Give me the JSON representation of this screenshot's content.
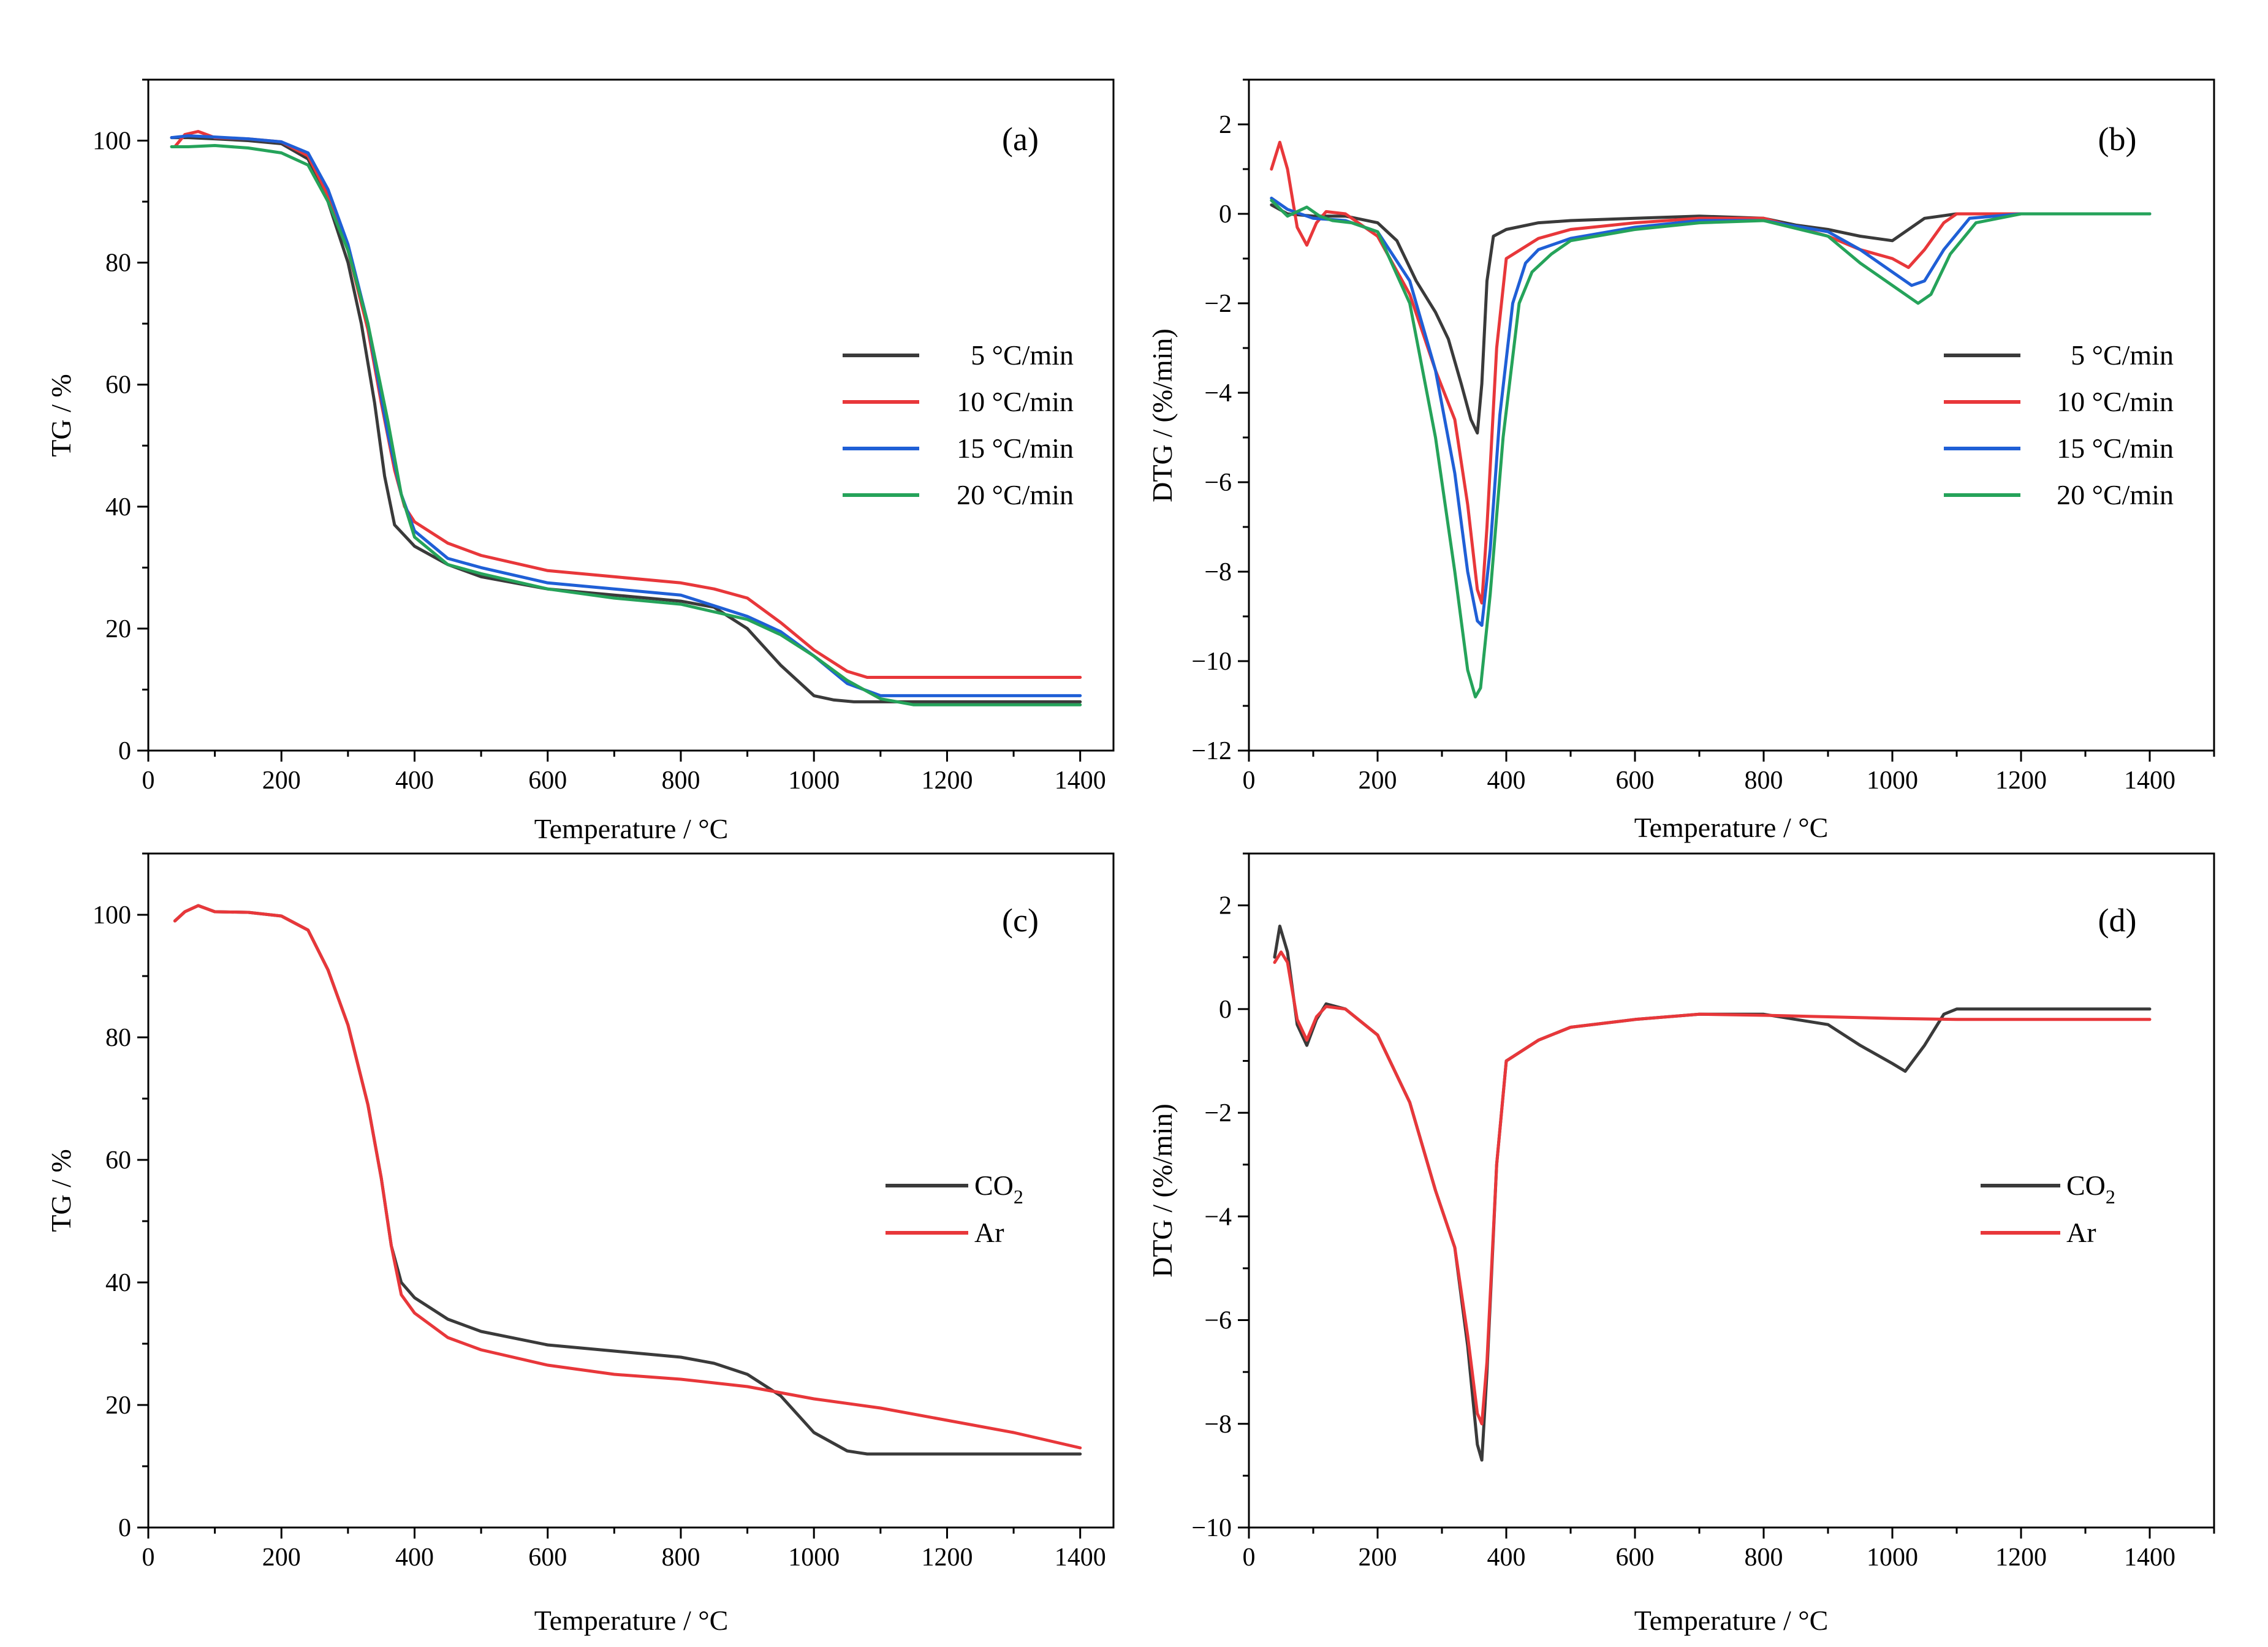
{
  "colors": {
    "rate_5": "#3a3a3a",
    "rate_10": "#e8373a",
    "rate_15": "#1f5fd6",
    "rate_20": "#25a35a",
    "co2": "#3a3a3a",
    "ar": "#e8373a"
  },
  "chart_data": [
    {
      "type": "line",
      "panel": "(a)",
      "xlabel": "Temperature / °C",
      "ylabel": "TG / %",
      "xlim": [
        0,
        1450
      ],
      "ylim": [
        0,
        110
      ],
      "xticks": [
        0,
        200,
        400,
        600,
        800,
        1000,
        1200,
        1400
      ],
      "yticks": [
        0,
        20,
        40,
        60,
        80,
        100
      ],
      "legend": "center-right",
      "series": [
        {
          "name": "5 °C/min",
          "color_key": "rate_5",
          "x": [
            35,
            60,
            100,
            150,
            200,
            240,
            270,
            300,
            320,
            340,
            355,
            370,
            400,
            450,
            500,
            600,
            700,
            800,
            850,
            900,
            950,
            1000,
            1030,
            1060,
            1100,
            1200,
            1400
          ],
          "y": [
            100.5,
            100.5,
            100.3,
            100,
            99.5,
            97,
            90,
            80,
            70,
            57,
            45,
            37,
            33.5,
            30.5,
            28.5,
            26.5,
            25.5,
            24.5,
            23.5,
            20,
            14,
            9,
            8.3,
            8,
            8,
            8,
            8
          ]
        },
        {
          "name": "10 °C/min",
          "color_key": "rate_10",
          "x": [
            40,
            55,
            75,
            100,
            150,
            200,
            240,
            270,
            300,
            330,
            350,
            370,
            385,
            400,
            450,
            500,
            600,
            700,
            800,
            850,
            900,
            950,
            1000,
            1050,
            1080,
            1100,
            1200,
            1400
          ],
          "y": [
            99,
            101,
            101.5,
            100.5,
            100.3,
            99.8,
            97.5,
            91,
            82,
            69,
            57,
            46,
            40,
            37.5,
            34,
            32,
            29.5,
            28.5,
            27.5,
            26.5,
            25,
            21,
            16.5,
            13,
            12,
            12,
            12,
            12
          ]
        },
        {
          "name": "15 °C/min",
          "color_key": "rate_15",
          "x": [
            35,
            60,
            100,
            150,
            200,
            240,
            270,
            300,
            330,
            360,
            380,
            400,
            450,
            500,
            600,
            700,
            800,
            900,
            950,
            1000,
            1050,
            1100,
            1200,
            1400
          ],
          "y": [
            100.5,
            100.8,
            100.6,
            100.3,
            99.8,
            98,
            92,
            83,
            70,
            52,
            42,
            36,
            31.5,
            30,
            27.5,
            26.5,
            25.5,
            22,
            19.5,
            15.5,
            11,
            9,
            9,
            9
          ]
        },
        {
          "name": "20 °C/min",
          "color_key": "rate_20",
          "x": [
            35,
            60,
            100,
            150,
            200,
            240,
            270,
            300,
            330,
            360,
            380,
            400,
            450,
            500,
            600,
            700,
            800,
            900,
            950,
            1000,
            1050,
            1100,
            1150,
            1200,
            1400
          ],
          "y": [
            99,
            99,
            99.2,
            98.8,
            98,
            96,
            90,
            82,
            70,
            54,
            42,
            35,
            30.5,
            29,
            26.5,
            25,
            24,
            21.5,
            19,
            15.5,
            11.5,
            8.5,
            7.5,
            7.5,
            7.5
          ]
        }
      ]
    },
    {
      "type": "line",
      "panel": "(b)",
      "xlabel": "Temperature / °C",
      "ylabel": "DTG / (%/min)",
      "xlim": [
        0,
        1500
      ],
      "ylim": [
        -12,
        3
      ],
      "xticks": [
        0,
        200,
        400,
        600,
        800,
        1000,
        1200,
        1400
      ],
      "yticks": [
        -12,
        -10,
        -8,
        -6,
        -4,
        -2,
        0,
        2
      ],
      "ytick_labels": [
        "−12",
        "−10",
        "−8",
        "−6",
        "−4",
        "−2",
        "0",
        "2"
      ],
      "legend": "center-right",
      "series": [
        {
          "name": "5 °C/min",
          "color_key": "rate_5",
          "x": [
            35,
            60,
            100,
            150,
            200,
            230,
            260,
            290,
            310,
            330,
            345,
            355,
            362,
            370,
            380,
            400,
            450,
            500,
            600,
            700,
            800,
            850,
            900,
            950,
            1000,
            1030,
            1050,
            1100,
            1200,
            1400
          ],
          "y": [
            0.2,
            0,
            -0.05,
            -0.05,
            -0.2,
            -0.6,
            -1.5,
            -2.2,
            -2.8,
            -3.8,
            -4.6,
            -4.9,
            -3.8,
            -1.5,
            -0.5,
            -0.35,
            -0.2,
            -0.15,
            -0.1,
            -0.05,
            -0.1,
            -0.25,
            -0.35,
            -0.5,
            -0.6,
            -0.3,
            -0.1,
            0,
            0,
            0
          ]
        },
        {
          "name": "10 °C/min",
          "color_key": "rate_10",
          "x": [
            35,
            48,
            60,
            75,
            90,
            105,
            120,
            150,
            200,
            250,
            290,
            320,
            340,
            355,
            362,
            370,
            385,
            400,
            450,
            500,
            600,
            700,
            800,
            900,
            950,
            1000,
            1025,
            1050,
            1080,
            1100,
            1200,
            1400
          ],
          "y": [
            1,
            1.6,
            1,
            -0.3,
            -0.7,
            -0.2,
            0.05,
            0,
            -0.5,
            -1.8,
            -3.5,
            -4.6,
            -6.5,
            -8.4,
            -8.7,
            -7,
            -3,
            -1,
            -0.55,
            -0.35,
            -0.2,
            -0.1,
            -0.1,
            -0.5,
            -0.8,
            -1,
            -1.2,
            -0.8,
            -0.2,
            0,
            0,
            0
          ]
        },
        {
          "name": "15 °C/min",
          "color_key": "rate_15",
          "x": [
            35,
            60,
            100,
            150,
            200,
            250,
            290,
            320,
            340,
            355,
            362,
            375,
            390,
            410,
            430,
            450,
            500,
            600,
            700,
            800,
            900,
            950,
            1000,
            1030,
            1050,
            1080,
            1120,
            1200,
            1400
          ],
          "y": [
            0.35,
            0.1,
            -0.1,
            -0.15,
            -0.4,
            -1.5,
            -3.5,
            -5.8,
            -8,
            -9.1,
            -9.2,
            -7.5,
            -4.5,
            -2,
            -1.1,
            -0.8,
            -0.55,
            -0.3,
            -0.15,
            -0.15,
            -0.4,
            -0.8,
            -1.3,
            -1.6,
            -1.5,
            -0.8,
            -0.1,
            0,
            0
          ]
        },
        {
          "name": "20 °C/min",
          "color_key": "rate_20",
          "x": [
            35,
            60,
            90,
            110,
            130,
            160,
            200,
            250,
            290,
            320,
            340,
            352,
            360,
            375,
            395,
            420,
            440,
            470,
            500,
            600,
            700,
            800,
            900,
            950,
            1000,
            1040,
            1060,
            1090,
            1130,
            1200,
            1400
          ],
          "y": [
            0.3,
            -0.05,
            0.15,
            -0.05,
            -0.15,
            -0.2,
            -0.4,
            -2,
            -5,
            -8,
            -10.2,
            -10.8,
            -10.6,
            -8.5,
            -5,
            -2,
            -1.3,
            -0.9,
            -0.6,
            -0.35,
            -0.2,
            -0.15,
            -0.5,
            -1.1,
            -1.6,
            -2,
            -1.8,
            -0.9,
            -0.2,
            0,
            0
          ]
        }
      ]
    },
    {
      "type": "line",
      "panel": "(c)",
      "xlabel": "Temperature / °C",
      "ylabel": "TG / %",
      "xlim": [
        0,
        1450
      ],
      "ylim": [
        0,
        110
      ],
      "xticks": [
        0,
        200,
        400,
        600,
        800,
        1000,
        1200,
        1400
      ],
      "yticks": [
        0,
        20,
        40,
        60,
        80,
        100
      ],
      "legend": "center-right",
      "series": [
        {
          "name": "CO2",
          "color_key": "co2",
          "x": [
            40,
            55,
            75,
            100,
            150,
            200,
            240,
            270,
            300,
            330,
            350,
            365,
            380,
            400,
            450,
            500,
            600,
            700,
            800,
            850,
            900,
            950,
            1000,
            1050,
            1080,
            1100,
            1200,
            1400
          ],
          "y": [
            99,
            100.5,
            101.5,
            100.5,
            100.4,
            99.8,
            97.5,
            91,
            82,
            69,
            57,
            46,
            40,
            37.5,
            34,
            32,
            29.8,
            28.8,
            27.8,
            26.8,
            25,
            21.5,
            15.5,
            12.5,
            12,
            12,
            12,
            12
          ]
        },
        {
          "name": "Ar",
          "color_key": "ar",
          "x": [
            40,
            55,
            75,
            100,
            150,
            200,
            240,
            270,
            300,
            330,
            350,
            365,
            380,
            400,
            450,
            500,
            600,
            700,
            800,
            900,
            1000,
            1100,
            1200,
            1300,
            1400
          ],
          "y": [
            99,
            100.5,
            101.5,
            100.5,
            100.4,
            99.8,
            97.5,
            91,
            82,
            69,
            57,
            46,
            38,
            35,
            31,
            29,
            26.5,
            25,
            24.2,
            23,
            21,
            19.5,
            17.5,
            15.5,
            13
          ]
        }
      ]
    },
    {
      "type": "line",
      "panel": "(d)",
      "xlabel": "Temperature / °C",
      "ylabel": "DTG / (%/min)",
      "xlim": [
        0,
        1500
      ],
      "ylim": [
        -10,
        3
      ],
      "xticks": [
        0,
        200,
        400,
        600,
        800,
        1000,
        1200,
        1400
      ],
      "yticks": [
        -10,
        -8,
        -6,
        -4,
        -2,
        0,
        2
      ],
      "ytick_labels": [
        "−10",
        "−8",
        "−6",
        "−4",
        "−2",
        "0",
        "2"
      ],
      "legend": "center-right",
      "series": [
        {
          "name": "CO2",
          "color_key": "co2",
          "x": [
            40,
            48,
            60,
            75,
            90,
            105,
            120,
            150,
            200,
            250,
            290,
            320,
            340,
            355,
            362,
            370,
            385,
            400,
            450,
            500,
            600,
            700,
            800,
            900,
            950,
            1000,
            1020,
            1050,
            1080,
            1100,
            1200,
            1400
          ],
          "y": [
            1,
            1.6,
            1.1,
            -0.3,
            -0.7,
            -0.2,
            0.1,
            0,
            -0.5,
            -1.8,
            -3.5,
            -4.6,
            -6.5,
            -8.4,
            -8.7,
            -7,
            -3,
            -1,
            -0.6,
            -0.35,
            -0.2,
            -0.1,
            -0.1,
            -0.3,
            -0.7,
            -1.05,
            -1.2,
            -0.7,
            -0.1,
            0,
            0,
            0
          ]
        },
        {
          "name": "Ar",
          "color_key": "ar",
          "x": [
            40,
            50,
            60,
            75,
            90,
            105,
            120,
            150,
            200,
            250,
            290,
            320,
            340,
            355,
            362,
            370,
            385,
            400,
            450,
            500,
            600,
            700,
            800,
            900,
            1000,
            1100,
            1200,
            1400
          ],
          "y": [
            0.9,
            1.1,
            0.9,
            -0.2,
            -0.6,
            -0.15,
            0.05,
            0,
            -0.5,
            -1.8,
            -3.5,
            -4.6,
            -6.3,
            -7.8,
            -8.0,
            -6.8,
            -3,
            -1,
            -0.6,
            -0.35,
            -0.2,
            -0.1,
            -0.12,
            -0.15,
            -0.18,
            -0.2,
            -0.2,
            -0.2
          ]
        }
      ]
    }
  ],
  "panels": {
    "a": {
      "tag": "(a)",
      "xlabel": "Temperature / °C",
      "ylabel": "TG / %",
      "legend": [
        "5 °C/min",
        "10 °C/min",
        "15 °C/min",
        "20 °C/min"
      ]
    },
    "b": {
      "tag": "(b)",
      "xlabel": "Temperature / °C",
      "ylabel": "DTG / (%/min)",
      "legend": [
        "5 °C/min",
        "10 °C/min",
        "15 °C/min",
        "20 °C/min"
      ]
    },
    "c": {
      "tag": "(c)",
      "xlabel": "Temperature / °C",
      "ylabel": "TG / %",
      "legend_co2_main": "CO",
      "legend_co2_sub": "2",
      "legend_ar": "Ar"
    },
    "d": {
      "tag": "(d)",
      "xlabel": "Temperature / °C",
      "ylabel": "DTG / (%/min)",
      "legend_co2_main": "CO",
      "legend_co2_sub": "2",
      "legend_ar": "Ar"
    }
  }
}
